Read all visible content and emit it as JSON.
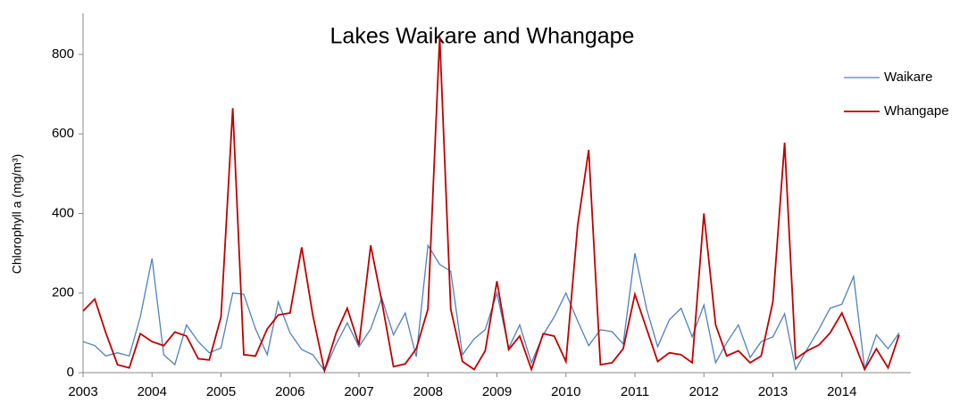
{
  "chart_data": {
    "type": "line",
    "title": "Lakes Waikare and Whangape",
    "y_label": "Chlorophyll a (mg/m³)",
    "x": [
      2003.0,
      2003.17,
      2003.33,
      2003.5,
      2003.67,
      2003.83,
      2004.0,
      2004.17,
      2004.33,
      2004.5,
      2004.67,
      2004.83,
      2005.0,
      2005.17,
      2005.33,
      2005.5,
      2005.67,
      2005.83,
      2006.0,
      2006.17,
      2006.33,
      2006.5,
      2006.67,
      2006.83,
      2007.0,
      2007.17,
      2007.33,
      2007.5,
      2007.67,
      2007.83,
      2008.0,
      2008.17,
      2008.33,
      2008.5,
      2008.67,
      2008.83,
      2009.0,
      2009.17,
      2009.33,
      2009.5,
      2009.67,
      2009.83,
      2010.0,
      2010.17,
      2010.33,
      2010.5,
      2010.67,
      2010.83,
      2011.0,
      2011.17,
      2011.33,
      2011.5,
      2011.67,
      2011.83,
      2012.0,
      2012.17,
      2012.33,
      2012.5,
      2012.67,
      2012.83,
      2013.0,
      2013.17,
      2013.33,
      2013.5,
      2013.67,
      2013.83,
      2014.0,
      2014.17,
      2014.33,
      2014.5,
      2014.67,
      2014.83
    ],
    "series": [
      {
        "name": "Waikare",
        "color": "#4f81bd",
        "values": [
          78,
          68,
          42,
          50,
          42,
          140,
          287,
          45,
          20,
          120,
          78,
          50,
          62,
          200,
          197,
          110,
          45,
          178,
          100,
          58,
          45,
          5,
          72,
          125,
          65,
          110,
          188,
          95,
          150,
          40,
          320,
          272,
          255,
          45,
          85,
          108,
          200,
          62,
          120,
          25,
          95,
          140,
          200,
          130,
          68,
          108,
          103,
          72,
          300,
          160,
          65,
          133,
          162,
          90,
          170,
          25,
          75,
          120,
          38,
          78,
          90,
          148,
          8,
          60,
          110,
          162,
          172,
          242,
          10,
          95,
          60,
          100
        ]
      },
      {
        "name": "Whangape",
        "color": "#c00000",
        "values": [
          155,
          185,
          100,
          20,
          12,
          98,
          78,
          68,
          102,
          92,
          35,
          32,
          140,
          665,
          45,
          42,
          110,
          145,
          150,
          315,
          145,
          5,
          100,
          162,
          70,
          320,
          180,
          15,
          22,
          60,
          160,
          845,
          160,
          28,
          8,
          55,
          230,
          58,
          92,
          8,
          98,
          92,
          28,
          370,
          560,
          20,
          25,
          60,
          197,
          110,
          28,
          50,
          45,
          25,
          400,
          120,
          42,
          55,
          25,
          42,
          178,
          578,
          35,
          55,
          70,
          100,
          150,
          80,
          8,
          60,
          12,
          95
        ]
      }
    ],
    "xlim": [
      2003,
      2015
    ],
    "xticks": [
      2003,
      2004,
      2005,
      2006,
      2007,
      2008,
      2009,
      2010,
      2011,
      2012,
      2013,
      2014
    ],
    "ylim": [
      0,
      800
    ],
    "yticks": [
      0,
      200,
      400,
      600,
      800
    ],
    "legend": "upper right"
  }
}
